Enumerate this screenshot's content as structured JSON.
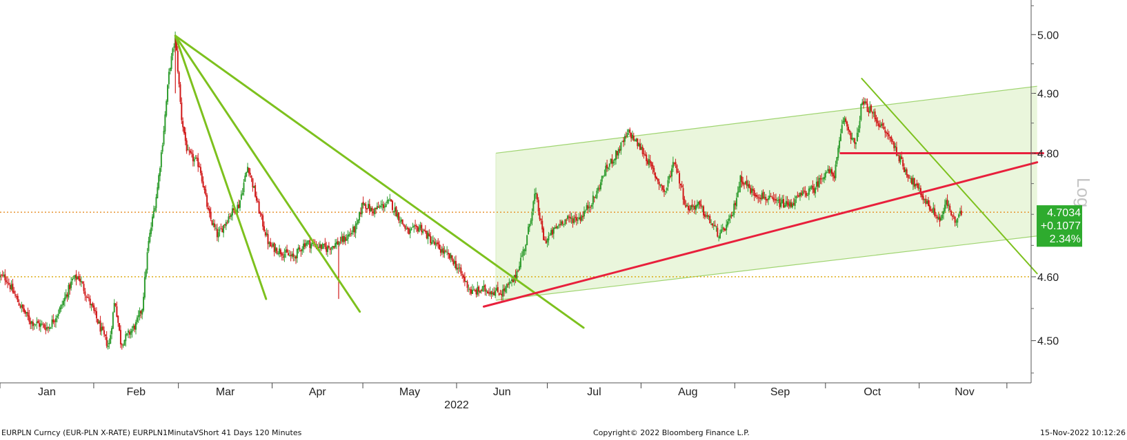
{
  "chart_data": {
    "type": "candlestick",
    "scale": "log",
    "scale_label": "Log",
    "ylim": [
      4.435,
      5.06
    ],
    "y_ticks": [
      "4.50",
      "4.60",
      "4.80",
      "4.90",
      "5.00"
    ],
    "x_months": [
      "Jan",
      "Feb",
      "Mar",
      "Apr",
      "May",
      "Jun",
      "Jul",
      "Aug",
      "Sep",
      "Oct",
      "Nov"
    ],
    "x_year": "2022",
    "up_color": "#2e9c2e",
    "down_color": "#d01818",
    "price_path": [
      [
        "2022-01-01",
        4.6
      ],
      [
        "2022-01-03",
        4.598
      ],
      [
        "2022-01-07",
        4.56
      ],
      [
        "2022-01-11",
        4.53
      ],
      [
        "2022-01-17",
        4.52
      ],
      [
        "2022-01-21",
        4.55
      ],
      [
        "2022-01-25",
        4.595
      ],
      [
        "2022-01-27",
        4.6
      ],
      [
        "2022-02-01",
        4.545
      ],
      [
        "2022-02-04",
        4.51
      ],
      [
        "2022-02-06",
        4.49
      ],
      [
        "2022-02-08",
        4.565
      ],
      [
        "2022-02-10",
        4.495
      ],
      [
        "2022-02-15",
        4.525
      ],
      [
        "2022-02-17",
        4.55
      ],
      [
        "2022-02-19",
        4.65
      ],
      [
        "2022-02-22",
        4.74
      ],
      [
        "2022-02-24",
        4.83
      ],
      [
        "2022-02-26",
        4.94
      ],
      [
        "2022-02-28",
        4.995
      ],
      [
        "2022-03-02",
        4.86
      ],
      [
        "2022-03-04",
        4.8
      ],
      [
        "2022-03-08",
        4.78
      ],
      [
        "2022-03-11",
        4.7
      ],
      [
        "2022-03-14",
        4.665
      ],
      [
        "2022-03-18",
        4.7
      ],
      [
        "2022-03-21",
        4.715
      ],
      [
        "2022-03-24",
        4.78
      ],
      [
        "2022-03-28",
        4.7
      ],
      [
        "2022-03-31",
        4.65
      ],
      [
        "2022-04-04",
        4.64
      ],
      [
        "2022-04-08",
        4.63
      ],
      [
        "2022-04-12",
        4.655
      ],
      [
        "2022-04-19",
        4.645
      ],
      [
        "2022-04-25",
        4.66
      ],
      [
        "2022-04-29",
        4.68
      ],
      [
        "2022-05-01",
        4.72
      ],
      [
        "2022-05-04",
        4.705
      ],
      [
        "2022-05-10",
        4.72
      ],
      [
        "2022-05-16",
        4.67
      ],
      [
        "2022-05-20",
        4.68
      ],
      [
        "2022-05-24",
        4.655
      ],
      [
        "2022-05-31",
        4.625
      ],
      [
        "2022-06-06",
        4.575
      ],
      [
        "2022-06-10",
        4.58
      ],
      [
        "2022-06-16",
        4.575
      ],
      [
        "2022-06-20",
        4.595
      ],
      [
        "2022-06-24",
        4.655
      ],
      [
        "2022-06-27",
        4.735
      ],
      [
        "2022-06-30",
        4.655
      ],
      [
        "2022-07-06",
        4.69
      ],
      [
        "2022-07-12",
        4.695
      ],
      [
        "2022-07-17",
        4.73
      ],
      [
        "2022-07-20",
        4.77
      ],
      [
        "2022-07-24",
        4.8
      ],
      [
        "2022-07-28",
        4.835
      ],
      [
        "2022-08-02",
        4.8
      ],
      [
        "2022-08-06",
        4.76
      ],
      [
        "2022-08-09",
        4.735
      ],
      [
        "2022-08-12",
        4.79
      ],
      [
        "2022-08-16",
        4.71
      ],
      [
        "2022-08-20",
        4.715
      ],
      [
        "2022-08-25",
        4.68
      ],
      [
        "2022-08-27",
        4.665
      ],
      [
        "2022-08-31",
        4.695
      ],
      [
        "2022-09-03",
        4.76
      ],
      [
        "2022-09-07",
        4.735
      ],
      [
        "2022-09-10",
        4.73
      ],
      [
        "2022-09-14",
        4.72
      ],
      [
        "2022-09-19",
        4.715
      ],
      [
        "2022-09-24",
        4.735
      ],
      [
        "2022-09-27",
        4.74
      ],
      [
        "2022-10-01",
        4.77
      ],
      [
        "2022-10-04",
        4.765
      ],
      [
        "2022-10-07",
        4.86
      ],
      [
        "2022-10-09",
        4.835
      ],
      [
        "2022-10-11",
        4.81
      ],
      [
        "2022-10-13",
        4.885
      ],
      [
        "2022-10-16",
        4.87
      ],
      [
        "2022-10-20",
        4.84
      ],
      [
        "2022-10-23",
        4.82
      ],
      [
        "2022-10-27",
        4.775
      ],
      [
        "2022-10-31",
        4.745
      ],
      [
        "2022-11-04",
        4.715
      ],
      [
        "2022-11-08",
        4.69
      ],
      [
        "2022-11-10",
        4.72
      ],
      [
        "2022-11-13",
        4.685
      ],
      [
        "2022-11-15",
        4.703
      ]
    ],
    "spikes": [
      {
        "date": "2022-04-23",
        "high": 4.65,
        "low": 4.565
      },
      {
        "date": "2022-02-28",
        "high": 5.0,
        "low": 4.9
      }
    ],
    "hlines": [
      {
        "y": 4.7034,
        "color": "#e58a1f",
        "style": "dotted"
      },
      {
        "y": 4.6,
        "color": "#d9a400",
        "style": "dotted"
      }
    ],
    "trendlines": [
      {
        "color": "#7dc11e",
        "width": 3,
        "p1": [
          "2022-02-28",
          4.998
        ],
        "p2": [
          "2022-03-30",
          4.565
        ]
      },
      {
        "color": "#7dc11e",
        "width": 3,
        "p1": [
          "2022-02-28",
          4.998
        ],
        "p2": [
          "2022-04-30",
          4.545
        ]
      },
      {
        "color": "#7dc11e",
        "width": 3,
        "p1": [
          "2022-02-28",
          4.998
        ],
        "p2": [
          "2022-07-13",
          4.52
        ]
      },
      {
        "color": "#7dc11e",
        "width": 2,
        "p1": [
          "2022-10-13",
          4.925
        ],
        "p2": [
          "2022-12-10",
          4.605
        ]
      },
      {
        "color": "#e8203c",
        "width": 3,
        "p1": [
          "2022-06-10",
          4.553
        ],
        "p2": [
          "2022-12-10",
          4.785
        ]
      },
      {
        "color": "#e8203c",
        "width": 3,
        "p1": [
          "2022-10-06",
          4.8
        ],
        "p2": [
          "2022-12-12",
          4.8
        ]
      }
    ],
    "channel": {
      "fill": "#eaf6dc",
      "edge": "#9fd470",
      "start": "2022-06-14",
      "end": "2022-12-10",
      "upper": [
        4.8,
        4.912
      ],
      "lower": [
        4.563,
        4.665
      ]
    },
    "last_price_box": {
      "price": "4.7034",
      "change": "+0.1077",
      "pct": "2.34%",
      "color": "#2eab2e"
    }
  },
  "footer": {
    "left": "EURPLN Curncy (EUR-PLN X-RATE) EURPLN1MinutaVShort 41 Days 120 Minutes",
    "center": "Copyright© 2022 Bloomberg Finance L.P.",
    "right": "15-Nov-2022 10:12:26"
  }
}
